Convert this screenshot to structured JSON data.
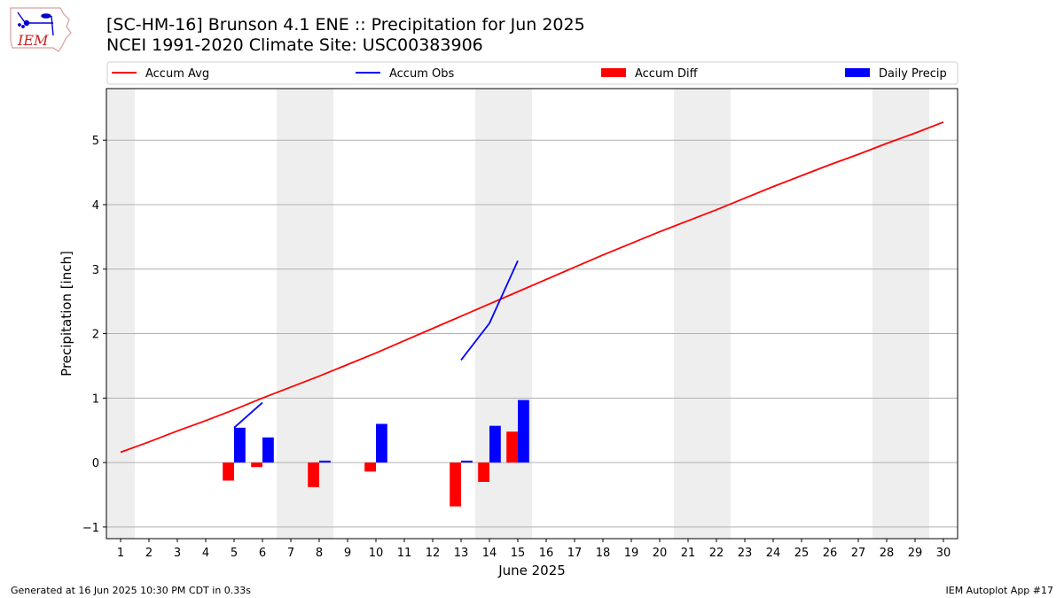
{
  "header": {
    "title_line1": "[SC-HM-16] Brunson 4.1 ENE :: Precipitation for Jun 2025",
    "title_line2": "NCEI 1991-2020 Climate Site: USC00383906"
  },
  "logo": {
    "text": "IEM"
  },
  "footer": {
    "left": "Generated at 16 Jun 2025 10:30 PM CDT in 0.33s",
    "right": "IEM Autoplot App #17"
  },
  "colors": {
    "accum_avg": "#ff0000",
    "accum_obs": "#0000ff",
    "accum_diff": "#ff0000",
    "daily_precip": "#0000ff",
    "weekend_band": "#eeeeee",
    "grid": "#b0b0b0"
  },
  "chart_data": {
    "type": "bar",
    "xlabel": "June 2025",
    "ylabel": "Precipitation [inch]",
    "xlim": [
      0.5,
      30.5
    ],
    "ylim": [
      -1.18,
      5.8
    ],
    "x_ticks": [
      1,
      2,
      3,
      4,
      5,
      6,
      7,
      8,
      9,
      10,
      11,
      12,
      13,
      14,
      15,
      16,
      17,
      18,
      19,
      20,
      21,
      22,
      23,
      24,
      25,
      26,
      27,
      28,
      29,
      30
    ],
    "y_ticks": [
      -1,
      0,
      1,
      2,
      3,
      4,
      5
    ],
    "grid": "horizontal",
    "legend_position": "top",
    "weekend_days": [
      1,
      7,
      8,
      14,
      15,
      21,
      22,
      28,
      29
    ],
    "series": [
      {
        "name": "Accum Avg",
        "kind": "line",
        "x": [
          1,
          2,
          3,
          4,
          5,
          6,
          7,
          8,
          9,
          10,
          11,
          12,
          13,
          14,
          15,
          16,
          17,
          18,
          19,
          20,
          21,
          22,
          23,
          24,
          25,
          26,
          27,
          28,
          29,
          30
        ],
        "values": [
          0.16,
          0.32,
          0.49,
          0.65,
          0.82,
          1.0,
          1.17,
          1.34,
          1.52,
          1.7,
          1.89,
          2.08,
          2.27,
          2.46,
          2.65,
          2.84,
          3.03,
          3.22,
          3.4,
          3.58,
          3.75,
          3.92,
          4.1,
          4.28,
          4.45,
          4.62,
          4.78,
          4.95,
          5.11,
          5.28
        ]
      },
      {
        "name": "Accum Obs",
        "kind": "line",
        "segments": [
          {
            "x": [
              5,
              6
            ],
            "values": [
              0.54,
              0.93
            ]
          },
          {
            "x": [
              13,
              14,
              15
            ],
            "values": [
              1.59,
              2.16,
              3.13
            ]
          }
        ]
      },
      {
        "name": "Accum Diff",
        "kind": "bar",
        "x": [
          5,
          6,
          8,
          10,
          13,
          14,
          15
        ],
        "values": [
          -0.28,
          -0.07,
          -0.38,
          -0.14,
          -0.68,
          -0.3,
          0.48
        ]
      },
      {
        "name": "Daily Precip",
        "kind": "bar",
        "x": [
          5,
          6,
          8,
          10,
          13,
          14,
          15
        ],
        "values": [
          0.54,
          0.39,
          0.03,
          0.6,
          0.03,
          0.57,
          0.97
        ]
      }
    ]
  }
}
